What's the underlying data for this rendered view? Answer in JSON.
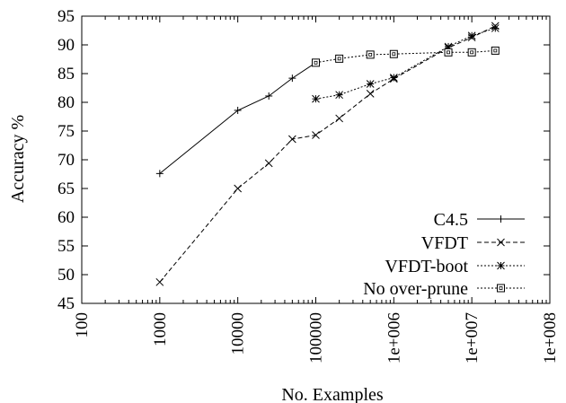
{
  "chart_data": {
    "type": "line",
    "xlabel": "No. Examples",
    "ylabel": "Accuracy %",
    "x_scale": "log",
    "xlim": [
      100,
      100000000
    ],
    "ylim": [
      45,
      95
    ],
    "x_ticks": [
      100,
      1000,
      10000,
      100000,
      1000000,
      10000000,
      100000000
    ],
    "x_tick_labels": [
      "100",
      "1000",
      "10000",
      "100000",
      "1e+006",
      "1e+007",
      "1e+008"
    ],
    "y_ticks": [
      45,
      50,
      55,
      60,
      65,
      70,
      75,
      80,
      85,
      90,
      95
    ],
    "y_tick_labels": [
      "45",
      "50",
      "55",
      "60",
      "65",
      "70",
      "75",
      "80",
      "85",
      "90",
      "95"
    ],
    "grid": false,
    "legend_position": "bottom-right",
    "series": [
      {
        "name": "C4.5",
        "marker": "plus",
        "dash": "solid",
        "x": [
          1000,
          10000,
          25000,
          50000,
          100000
        ],
        "y": [
          67.6,
          78.6,
          81.1,
          84.2,
          86.9
        ]
      },
      {
        "name": "VFDT",
        "marker": "cross",
        "dash": "dashed",
        "x": [
          1000,
          10000,
          25000,
          50000,
          100000,
          200000,
          500000,
          1000000,
          5000000,
          10000000,
          20000000
        ],
        "y": [
          48.7,
          65.0,
          69.4,
          73.6,
          74.3,
          77.2,
          81.5,
          84.1,
          89.5,
          91.3,
          93.3
        ]
      },
      {
        "name": "VFDT-boot",
        "marker": "star",
        "dash": "dotted",
        "x": [
          100000,
          200000,
          500000,
          1000000,
          5000000,
          10000000,
          20000000
        ],
        "y": [
          80.6,
          81.3,
          83.2,
          84.3,
          89.7,
          91.6,
          92.9
        ]
      },
      {
        "name": "No over-prune",
        "marker": "square",
        "dash": "dotted",
        "x": [
          100000,
          200000,
          500000,
          1000000,
          5000000,
          10000000,
          20000000
        ],
        "y": [
          86.9,
          87.6,
          88.3,
          88.4,
          88.7,
          88.7,
          89.0
        ]
      }
    ]
  }
}
